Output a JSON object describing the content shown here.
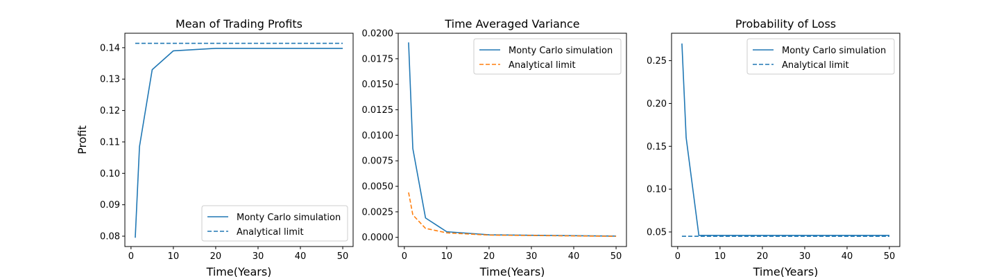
{
  "chart_data": [
    {
      "type": "line",
      "title": "Mean of Trading Profits",
      "xlabel": "Time(Years)",
      "ylabel": "Profit",
      "xlim": [
        -1.45,
        52.45
      ],
      "ylim": [
        0.0767,
        0.1446
      ],
      "xticks": [
        0,
        10,
        20,
        30,
        40,
        50
      ],
      "xtick_labels": [
        "0",
        "10",
        "20",
        "30",
        "40",
        "50"
      ],
      "yticks": [
        0.08,
        0.09,
        0.1,
        0.11,
        0.12,
        0.13,
        0.14
      ],
      "ytick_labels": [
        "0.08",
        "0.09",
        "0.10",
        "0.11",
        "0.12",
        "0.13",
        "0.14"
      ],
      "legend_position": "lower-right",
      "grid": false,
      "series": [
        {
          "name": "Monty Carlo simulation",
          "style": "solid",
          "color": "#1f77b4",
          "x": [
            1,
            2,
            5,
            10,
            20,
            50
          ],
          "y": [
            0.0795,
            0.1085,
            0.133,
            0.139,
            0.1398,
            0.1398
          ]
        },
        {
          "name": "Analytical limit",
          "style": "dashed",
          "color": "#1f77b4",
          "x": [
            1,
            50
          ],
          "y": [
            0.1414,
            0.1414
          ]
        }
      ]
    },
    {
      "type": "line",
      "title": "Time Averaged Variance",
      "xlabel": "Time(Years)",
      "ylabel": "",
      "xlim": [
        -1.45,
        52.45
      ],
      "ylim": [
        -0.0009,
        0.02
      ],
      "xticks": [
        0,
        10,
        20,
        30,
        40,
        50
      ],
      "xtick_labels": [
        "0",
        "10",
        "20",
        "30",
        "40",
        "50"
      ],
      "yticks": [
        0.0,
        0.0025,
        0.005,
        0.0075,
        0.01,
        0.0125,
        0.015,
        0.0175,
        0.02
      ],
      "ytick_labels": [
        "0.0000",
        "0.0025",
        "0.0050",
        "0.0075",
        "0.0100",
        "0.0125",
        "0.0150",
        "0.0175",
        "0.0200"
      ],
      "legend_position": "upper-right",
      "grid": false,
      "series": [
        {
          "name": "Monty Carlo simulation",
          "style": "solid",
          "color": "#1f77b4",
          "x": [
            1,
            2,
            5,
            10,
            20,
            50
          ],
          "y": [
            0.0191,
            0.0087,
            0.0019,
            0.00055,
            0.00025,
            0.00012
          ]
        },
        {
          "name": "Analytical limit",
          "style": "dashed",
          "color": "#ff7f0e",
          "x": [
            1,
            2,
            5,
            10,
            20,
            50
          ],
          "y": [
            0.0044,
            0.0022,
            0.00088,
            0.00044,
            0.00022,
            0.0001
          ]
        }
      ]
    },
    {
      "type": "line",
      "title": "Probability of Loss",
      "xlabel": "Time(Years)",
      "ylabel": "",
      "xlim": [
        -1.45,
        52.45
      ],
      "ylim": [
        0.033,
        0.282
      ],
      "xticks": [
        0,
        10,
        20,
        30,
        40,
        50
      ],
      "xtick_labels": [
        "0",
        "10",
        "20",
        "30",
        "40",
        "50"
      ],
      "yticks": [
        0.05,
        0.1,
        0.15,
        0.2,
        0.25
      ],
      "ytick_labels": [
        "0.05",
        "0.10",
        "0.15",
        "0.20",
        "0.25"
      ],
      "legend_position": "upper-right",
      "grid": false,
      "series": [
        {
          "name": "Monty Carlo simulation",
          "style": "solid",
          "color": "#1f77b4",
          "x": [
            1,
            2,
            5,
            10,
            20,
            50
          ],
          "y": [
            0.27,
            0.16,
            0.046,
            0.046,
            0.046,
            0.046
          ]
        },
        {
          "name": "Analytical limit",
          "style": "dashed",
          "color": "#1f77b4",
          "x": [
            1,
            50
          ],
          "y": [
            0.045,
            0.045
          ]
        }
      ]
    }
  ]
}
